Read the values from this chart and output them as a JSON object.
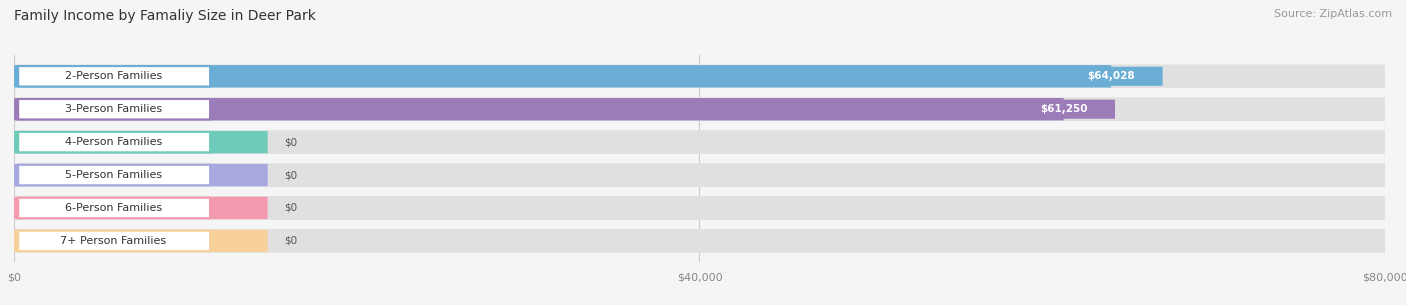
{
  "title": "Family Income by Famaliy Size in Deer Park",
  "source": "Source: ZipAtlas.com",
  "categories": [
    "2-Person Families",
    "3-Person Families",
    "4-Person Families",
    "5-Person Families",
    "6-Person Families",
    "7+ Person Families"
  ],
  "values": [
    64028,
    61250,
    0,
    0,
    0,
    0
  ],
  "bar_colors": [
    "#6aaed6",
    "#9b7bb8",
    "#6ecab9",
    "#a8a8e0",
    "#f49ab0",
    "#f7d09a"
  ],
  "value_labels": [
    "$64,028",
    "$61,250",
    "$0",
    "$0",
    "$0",
    "$0"
  ],
  "xlim_max": 80000,
  "xtick_labels": [
    "$0",
    "$40,000",
    "$80,000"
  ],
  "bg_color": "#f5f5f5",
  "row_bg_color": "#ebebeb",
  "row_alt_color": "#f0f0f0",
  "title_fontsize": 10,
  "source_fontsize": 8,
  "label_fontsize": 8,
  "value_fontsize": 7.5,
  "tick_fontsize": 8
}
